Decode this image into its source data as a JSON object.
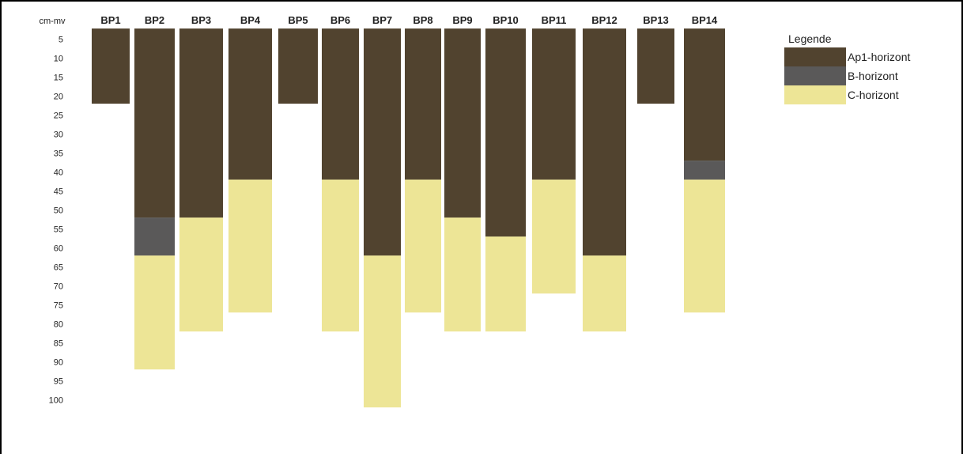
{
  "chart_data": {
    "type": "bar",
    "orientation": "vertical-stacked-depth",
    "title": "",
    "ylabel": "cm-mv",
    "ylim": [
      0,
      100
    ],
    "y_ticks": [
      5,
      10,
      15,
      20,
      25,
      30,
      35,
      40,
      45,
      50,
      55,
      60,
      65,
      70,
      75,
      80,
      85,
      90,
      95,
      100
    ],
    "categories": [
      "BP1",
      "BP2",
      "BP3",
      "BP4",
      "BP5",
      "BP6",
      "BP7",
      "BP8",
      "BP9",
      "BP10",
      "BP11",
      "BP12",
      "BP13",
      "BP14"
    ],
    "series": [
      {
        "name": "Ap1-horizont",
        "color": "#51432f",
        "values": [
          22,
          52,
          52,
          42,
          22,
          42,
          62,
          42,
          52,
          57,
          42,
          62,
          22,
          37
        ]
      },
      {
        "name": "B-horizont",
        "color": "#5a5959",
        "values": [
          0,
          10,
          0,
          0,
          0,
          0,
          0,
          0,
          0,
          0,
          0,
          0,
          0,
          5
        ]
      },
      {
        "name": "C-horizont",
        "color": "#ede596",
        "values": [
          0,
          30,
          30,
          35,
          0,
          40,
          40,
          35,
          30,
          25,
          30,
          20,
          0,
          35
        ]
      }
    ],
    "legend": {
      "title": "Legende",
      "position": "top-right"
    },
    "grid": false
  }
}
